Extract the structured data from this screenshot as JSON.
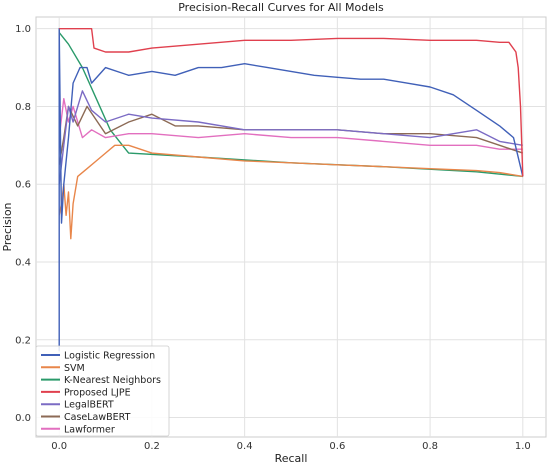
{
  "chart_data": {
    "type": "line",
    "title": "Precision-Recall Curves for All Models",
    "xlabel": "Recall",
    "ylabel": "Precision",
    "xlim": [
      -0.05,
      1.05
    ],
    "ylim": [
      -0.05,
      1.03
    ],
    "xticks": [
      0.0,
      0.2,
      0.4,
      0.6,
      0.8,
      1.0
    ],
    "yticks": [
      0.0,
      0.2,
      0.4,
      0.6,
      0.8,
      1.0
    ],
    "tick_labels_x": [
      "0.0",
      "0.2",
      "0.4",
      "0.6",
      "0.8",
      "1.0"
    ],
    "tick_labels_y": [
      "0.0",
      "0.2",
      "0.4",
      "0.6",
      "0.8",
      "1.0"
    ],
    "grid": true,
    "legend_position": "bottom-left",
    "series": [
      {
        "name": "Logistic Regression",
        "color": "#4060b8",
        "points": [
          [
            0.0,
            0.17
          ],
          [
            0.0,
            1.0
          ],
          [
            0.005,
            0.5
          ],
          [
            0.01,
            0.6
          ],
          [
            0.02,
            0.72
          ],
          [
            0.03,
            0.86
          ],
          [
            0.045,
            0.9
          ],
          [
            0.06,
            0.9
          ],
          [
            0.07,
            0.86
          ],
          [
            0.1,
            0.9
          ],
          [
            0.15,
            0.88
          ],
          [
            0.2,
            0.89
          ],
          [
            0.25,
            0.88
          ],
          [
            0.3,
            0.9
          ],
          [
            0.35,
            0.9
          ],
          [
            0.4,
            0.91
          ],
          [
            0.45,
            0.9
          ],
          [
            0.5,
            0.89
          ],
          [
            0.55,
            0.88
          ],
          [
            0.6,
            0.875
          ],
          [
            0.65,
            0.87
          ],
          [
            0.7,
            0.87
          ],
          [
            0.75,
            0.86
          ],
          [
            0.8,
            0.85
          ],
          [
            0.85,
            0.83
          ],
          [
            0.9,
            0.79
          ],
          [
            0.95,
            0.75
          ],
          [
            0.98,
            0.72
          ],
          [
            1.0,
            0.62
          ]
        ]
      },
      {
        "name": "SVM",
        "color": "#e8864a",
        "points": [
          [
            0.0,
            0.52
          ],
          [
            0.005,
            0.55
          ],
          [
            0.01,
            0.6
          ],
          [
            0.015,
            0.52
          ],
          [
            0.02,
            0.58
          ],
          [
            0.025,
            0.46
          ],
          [
            0.03,
            0.55
          ],
          [
            0.04,
            0.62
          ],
          [
            0.06,
            0.64
          ],
          [
            0.08,
            0.66
          ],
          [
            0.1,
            0.68
          ],
          [
            0.12,
            0.7
          ],
          [
            0.15,
            0.7
          ],
          [
            0.2,
            0.68
          ],
          [
            0.3,
            0.67
          ],
          [
            0.4,
            0.66
          ],
          [
            0.5,
            0.655
          ],
          [
            0.6,
            0.65
          ],
          [
            0.7,
            0.645
          ],
          [
            0.8,
            0.64
          ],
          [
            0.9,
            0.635
          ],
          [
            0.95,
            0.63
          ],
          [
            1.0,
            0.62
          ]
        ]
      },
      {
        "name": "K-Nearest Neighbors",
        "color": "#2a9a6a",
        "points": [
          [
            0.0,
            1.0
          ],
          [
            0.0,
            0.99
          ],
          [
            0.02,
            0.96
          ],
          [
            0.05,
            0.9
          ],
          [
            0.08,
            0.82
          ],
          [
            0.11,
            0.74
          ],
          [
            0.15,
            0.68
          ],
          [
            0.3,
            0.67
          ],
          [
            0.5,
            0.655
          ],
          [
            0.7,
            0.645
          ],
          [
            0.9,
            0.632
          ],
          [
            1.0,
            0.62
          ]
        ]
      },
      {
        "name": "Proposed LJPE",
        "color": "#e0404e",
        "points": [
          [
            0.0,
            1.0
          ],
          [
            0.07,
            1.0
          ],
          [
            0.075,
            0.95
          ],
          [
            0.1,
            0.94
          ],
          [
            0.15,
            0.94
          ],
          [
            0.2,
            0.95
          ],
          [
            0.3,
            0.96
          ],
          [
            0.4,
            0.97
          ],
          [
            0.5,
            0.97
          ],
          [
            0.6,
            0.975
          ],
          [
            0.7,
            0.975
          ],
          [
            0.8,
            0.97
          ],
          [
            0.9,
            0.97
          ],
          [
            0.95,
            0.965
          ],
          [
            0.97,
            0.965
          ],
          [
            0.985,
            0.94
          ],
          [
            0.99,
            0.9
          ],
          [
            0.995,
            0.8
          ],
          [
            1.0,
            0.62
          ]
        ]
      },
      {
        "name": "LegalBERT",
        "color": "#7b6bc4",
        "points": [
          [
            0.0,
            0.6
          ],
          [
            0.01,
            0.7
          ],
          [
            0.02,
            0.8
          ],
          [
            0.03,
            0.76
          ],
          [
            0.05,
            0.84
          ],
          [
            0.07,
            0.79
          ],
          [
            0.1,
            0.76
          ],
          [
            0.15,
            0.78
          ],
          [
            0.2,
            0.77
          ],
          [
            0.3,
            0.76
          ],
          [
            0.4,
            0.74
          ],
          [
            0.5,
            0.74
          ],
          [
            0.6,
            0.74
          ],
          [
            0.7,
            0.73
          ],
          [
            0.8,
            0.72
          ],
          [
            0.9,
            0.74
          ],
          [
            0.95,
            0.71
          ],
          [
            1.0,
            0.7
          ]
        ]
      },
      {
        "name": "CaseLawBERT",
        "color": "#8c6a55",
        "points": [
          [
            0.0,
            0.65
          ],
          [
            0.01,
            0.72
          ],
          [
            0.02,
            0.8
          ],
          [
            0.04,
            0.75
          ],
          [
            0.06,
            0.8
          ],
          [
            0.1,
            0.73
          ],
          [
            0.15,
            0.76
          ],
          [
            0.2,
            0.78
          ],
          [
            0.25,
            0.75
          ],
          [
            0.3,
            0.75
          ],
          [
            0.4,
            0.74
          ],
          [
            0.5,
            0.74
          ],
          [
            0.6,
            0.74
          ],
          [
            0.7,
            0.73
          ],
          [
            0.8,
            0.73
          ],
          [
            0.9,
            0.72
          ],
          [
            0.95,
            0.7
          ],
          [
            1.0,
            0.68
          ]
        ]
      },
      {
        "name": "Lawformer",
        "color": "#e26fbf",
        "points": [
          [
            0.0,
            0.72
          ],
          [
            0.01,
            0.82
          ],
          [
            0.02,
            0.76
          ],
          [
            0.03,
            0.8
          ],
          [
            0.05,
            0.72
          ],
          [
            0.07,
            0.74
          ],
          [
            0.1,
            0.72
          ],
          [
            0.15,
            0.73
          ],
          [
            0.2,
            0.73
          ],
          [
            0.3,
            0.72
          ],
          [
            0.4,
            0.73
          ],
          [
            0.5,
            0.72
          ],
          [
            0.6,
            0.72
          ],
          [
            0.7,
            0.71
          ],
          [
            0.8,
            0.7
          ],
          [
            0.9,
            0.7
          ],
          [
            0.95,
            0.69
          ],
          [
            1.0,
            0.69
          ]
        ]
      }
    ]
  }
}
